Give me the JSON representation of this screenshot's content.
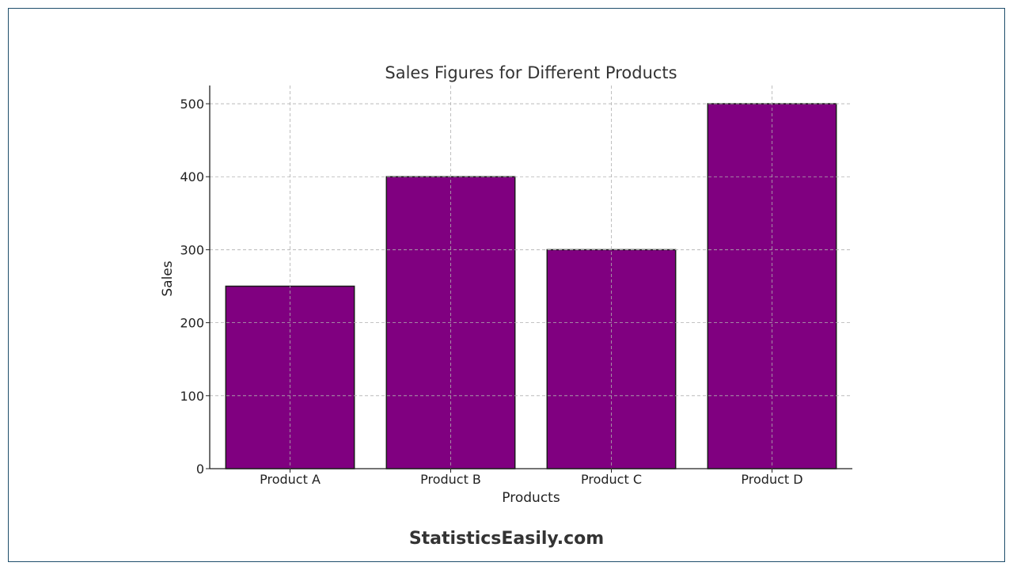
{
  "chart_data": {
    "type": "bar",
    "title": "Sales Figures for Different Products",
    "xlabel": "Products",
    "ylabel": "Sales",
    "categories": [
      "Product A",
      "Product B",
      "Product C",
      "Product D"
    ],
    "values": [
      250,
      400,
      300,
      500
    ],
    "ylim": [
      0,
      525
    ],
    "yticks": [
      0,
      100,
      200,
      300,
      400,
      500
    ],
    "grid": true,
    "bar_color": "#800080",
    "edge_color": "#1a1a1a"
  },
  "footer": {
    "brand": "StatisticsEasily.com"
  }
}
